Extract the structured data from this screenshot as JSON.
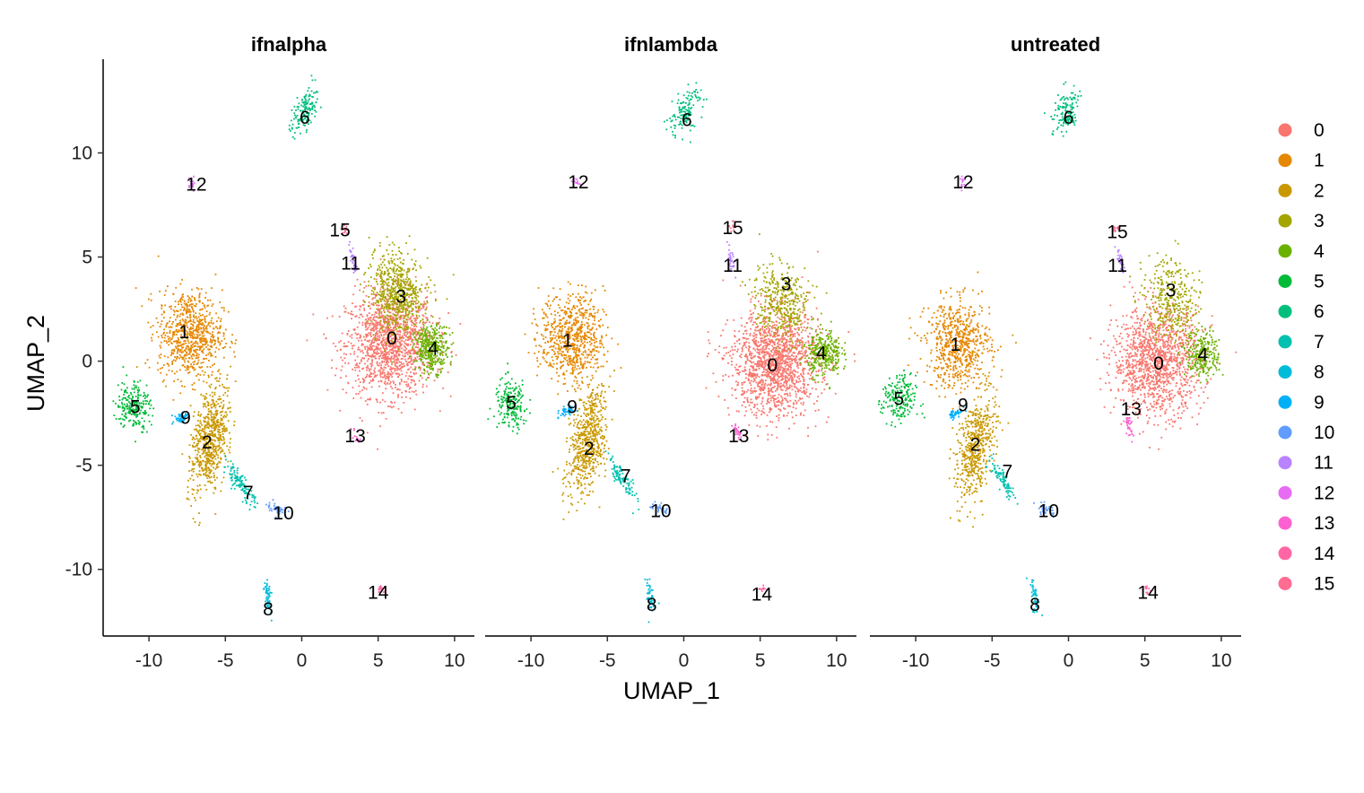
{
  "chart_data": {
    "type": "scatter",
    "xlabel": "UMAP_1",
    "ylabel": "UMAP_2",
    "xlim": [
      -13,
      11.3
    ],
    "ylim": [
      -13.2,
      14.5
    ],
    "xticks": [
      -10,
      -5,
      0,
      5,
      10
    ],
    "yticks": [
      -10,
      -5,
      0,
      5,
      10
    ],
    "grid": false,
    "legend_position": "right",
    "legend": [
      {
        "label": "0",
        "color": "#F8766D"
      },
      {
        "label": "1",
        "color": "#E58700"
      },
      {
        "label": "2",
        "color": "#C99800"
      },
      {
        "label": "3",
        "color": "#A3A500"
      },
      {
        "label": "4",
        "color": "#6BB100"
      },
      {
        "label": "5",
        "color": "#00BA38"
      },
      {
        "label": "6",
        "color": "#00BF7D"
      },
      {
        "label": "7",
        "color": "#00C0AF"
      },
      {
        "label": "8",
        "color": "#00BCD8"
      },
      {
        "label": "9",
        "color": "#00B0F6"
      },
      {
        "label": "10",
        "color": "#619CFF"
      },
      {
        "label": "11",
        "color": "#B983FF"
      },
      {
        "label": "12",
        "color": "#E76BF3"
      },
      {
        "label": "13",
        "color": "#FD61D1"
      },
      {
        "label": "14",
        "color": "#FF67A4"
      },
      {
        "label": "15",
        "color": "#FF6C91"
      }
    ],
    "panels": [
      {
        "title": "ifnalpha",
        "clusters": [
          {
            "id": "0",
            "x": 5.8,
            "y": 0.8,
            "label_x": 5.9,
            "label_y": 1.1,
            "n": 1400
          },
          {
            "id": "1",
            "x": -7.3,
            "y": 1.3,
            "label_x": -7.7,
            "label_y": 1.4,
            "n": 750
          },
          {
            "id": "2",
            "x": -6.0,
            "y": -3.7,
            "label_x": -6.2,
            "label_y": -3.9,
            "n": 650
          },
          {
            "id": "3",
            "x": 6.3,
            "y": 3.2,
            "label_x": 6.5,
            "label_y": 3.1,
            "n": 650
          },
          {
            "id": "4",
            "x": 8.5,
            "y": 0.6,
            "label_x": 8.6,
            "label_y": 0.6,
            "n": 350
          },
          {
            "id": "5",
            "x": -11.0,
            "y": -2.1,
            "label_x": -10.9,
            "label_y": -2.2,
            "n": 220
          },
          {
            "id": "6",
            "x": 0.1,
            "y": 12.0,
            "label_x": 0.2,
            "label_y": 11.7,
            "n": 150
          },
          {
            "id": "7",
            "x": -4.0,
            "y": -5.9,
            "label_x": -3.5,
            "label_y": -6.3,
            "n": 120
          },
          {
            "id": "8",
            "x": -2.2,
            "y": -11.3,
            "label_x": -2.2,
            "label_y": -11.9,
            "n": 60
          },
          {
            "id": "9",
            "x": -7.9,
            "y": -2.7,
            "label_x": -7.6,
            "label_y": -2.7,
            "n": 50
          },
          {
            "id": "10",
            "x": -1.6,
            "y": -7.1,
            "label_x": -1.2,
            "label_y": -7.3,
            "n": 45
          },
          {
            "id": "11",
            "x": 3.4,
            "y": 4.8,
            "label_x": 3.2,
            "label_y": 4.7,
            "n": 40
          },
          {
            "id": "12",
            "x": -7.2,
            "y": 8.5,
            "label_x": -6.9,
            "label_y": 8.5,
            "n": 15
          },
          {
            "id": "13",
            "x": 3.6,
            "y": -3.6,
            "label_x": 3.5,
            "label_y": -3.6,
            "n": 15
          },
          {
            "id": "14",
            "x": 5.2,
            "y": -11.0,
            "label_x": 5.0,
            "label_y": -11.1,
            "n": 15
          },
          {
            "id": "15",
            "x": 2.8,
            "y": 6.3,
            "label_x": 2.5,
            "label_y": 6.3,
            "n": 15
          }
        ]
      },
      {
        "title": "ifnlambda",
        "clusters": [
          {
            "id": "0",
            "x": 6.0,
            "y": -0.1,
            "label_x": 5.8,
            "label_y": -0.2,
            "n": 1500
          },
          {
            "id": "1",
            "x": -7.3,
            "y": 1.1,
            "label_x": -7.6,
            "label_y": 1.0,
            "n": 700
          },
          {
            "id": "2",
            "x": -6.3,
            "y": -3.8,
            "label_x": -6.2,
            "label_y": -4.2,
            "n": 600
          },
          {
            "id": "3",
            "x": 6.4,
            "y": 2.8,
            "label_x": 6.7,
            "label_y": 3.7,
            "n": 400
          },
          {
            "id": "4",
            "x": 9.2,
            "y": 0.4,
            "label_x": 9.0,
            "label_y": 0.4,
            "n": 300
          },
          {
            "id": "5",
            "x": -11.3,
            "y": -2.1,
            "label_x": -11.3,
            "label_y": -2.0,
            "n": 200
          },
          {
            "id": "6",
            "x": 0.1,
            "y": 12.0,
            "label_x": 0.2,
            "label_y": 11.6,
            "n": 140
          },
          {
            "id": "7",
            "x": -4.1,
            "y": -5.6,
            "label_x": -3.8,
            "label_y": -5.5,
            "n": 110
          },
          {
            "id": "8",
            "x": -2.2,
            "y": -11.3,
            "label_x": -2.1,
            "label_y": -11.7,
            "n": 50
          },
          {
            "id": "9",
            "x": -7.6,
            "y": -2.4,
            "label_x": -7.3,
            "label_y": -2.2,
            "n": 50
          },
          {
            "id": "10",
            "x": -1.6,
            "y": -7.1,
            "label_x": -1.5,
            "label_y": -7.2,
            "n": 40
          },
          {
            "id": "11",
            "x": 3.1,
            "y": 4.8,
            "label_x": 3.2,
            "label_y": 4.6,
            "n": 35
          },
          {
            "id": "12",
            "x": -7.0,
            "y": 8.6,
            "label_x": -6.9,
            "label_y": 8.6,
            "n": 12
          },
          {
            "id": "13",
            "x": 3.5,
            "y": -3.4,
            "label_x": 3.6,
            "label_y": -3.6,
            "n": 25
          },
          {
            "id": "14",
            "x": 5.1,
            "y": -11.0,
            "label_x": 5.1,
            "label_y": -11.2,
            "n": 12
          },
          {
            "id": "15",
            "x": 3.2,
            "y": 6.4,
            "label_x": 3.2,
            "label_y": 6.4,
            "n": 12
          }
        ]
      },
      {
        "title": "untreated",
        "clusters": [
          {
            "id": "0",
            "x": 5.8,
            "y": 0.0,
            "label_x": 5.9,
            "label_y": -0.1,
            "n": 1300
          },
          {
            "id": "1",
            "x": -7.2,
            "y": 0.8,
            "label_x": -7.4,
            "label_y": 0.8,
            "n": 650
          },
          {
            "id": "2",
            "x": -6.1,
            "y": -4.1,
            "label_x": -6.1,
            "label_y": -4.0,
            "n": 550
          },
          {
            "id": "3",
            "x": 6.7,
            "y": 2.9,
            "label_x": 6.7,
            "label_y": 3.4,
            "n": 350
          },
          {
            "id": "4",
            "x": 8.8,
            "y": 0.3,
            "label_x": 8.8,
            "label_y": 0.3,
            "n": 250
          },
          {
            "id": "5",
            "x": -11.1,
            "y": -1.9,
            "label_x": -11.1,
            "label_y": -1.8,
            "n": 200
          },
          {
            "id": "6",
            "x": -0.1,
            "y": 12.0,
            "label_x": 0.0,
            "label_y": 11.7,
            "n": 130
          },
          {
            "id": "7",
            "x": -4.3,
            "y": -5.7,
            "label_x": -4.0,
            "label_y": -5.3,
            "n": 90
          },
          {
            "id": "8",
            "x": -2.2,
            "y": -11.3,
            "label_x": -2.2,
            "label_y": -11.7,
            "n": 45
          },
          {
            "id": "9",
            "x": -7.4,
            "y": -2.5,
            "label_x": -6.9,
            "label_y": -2.1,
            "n": 40
          },
          {
            "id": "10",
            "x": -1.5,
            "y": -7.1,
            "label_x": -1.3,
            "label_y": -7.2,
            "n": 35
          },
          {
            "id": "11",
            "x": 3.4,
            "y": 4.8,
            "label_x": 3.2,
            "label_y": 4.6,
            "n": 35
          },
          {
            "id": "12",
            "x": -7.0,
            "y": 8.6,
            "label_x": -6.9,
            "label_y": 8.6,
            "n": 12
          },
          {
            "id": "13",
            "x": 3.9,
            "y": -3.0,
            "label_x": 4.1,
            "label_y": -2.3,
            "n": 35
          },
          {
            "id": "14",
            "x": 5.2,
            "y": -11.0,
            "label_x": 5.2,
            "label_y": -11.1,
            "n": 12
          },
          {
            "id": "15",
            "x": 3.1,
            "y": 6.4,
            "label_x": 3.2,
            "label_y": 6.2,
            "n": 12
          }
        ]
      }
    ]
  }
}
